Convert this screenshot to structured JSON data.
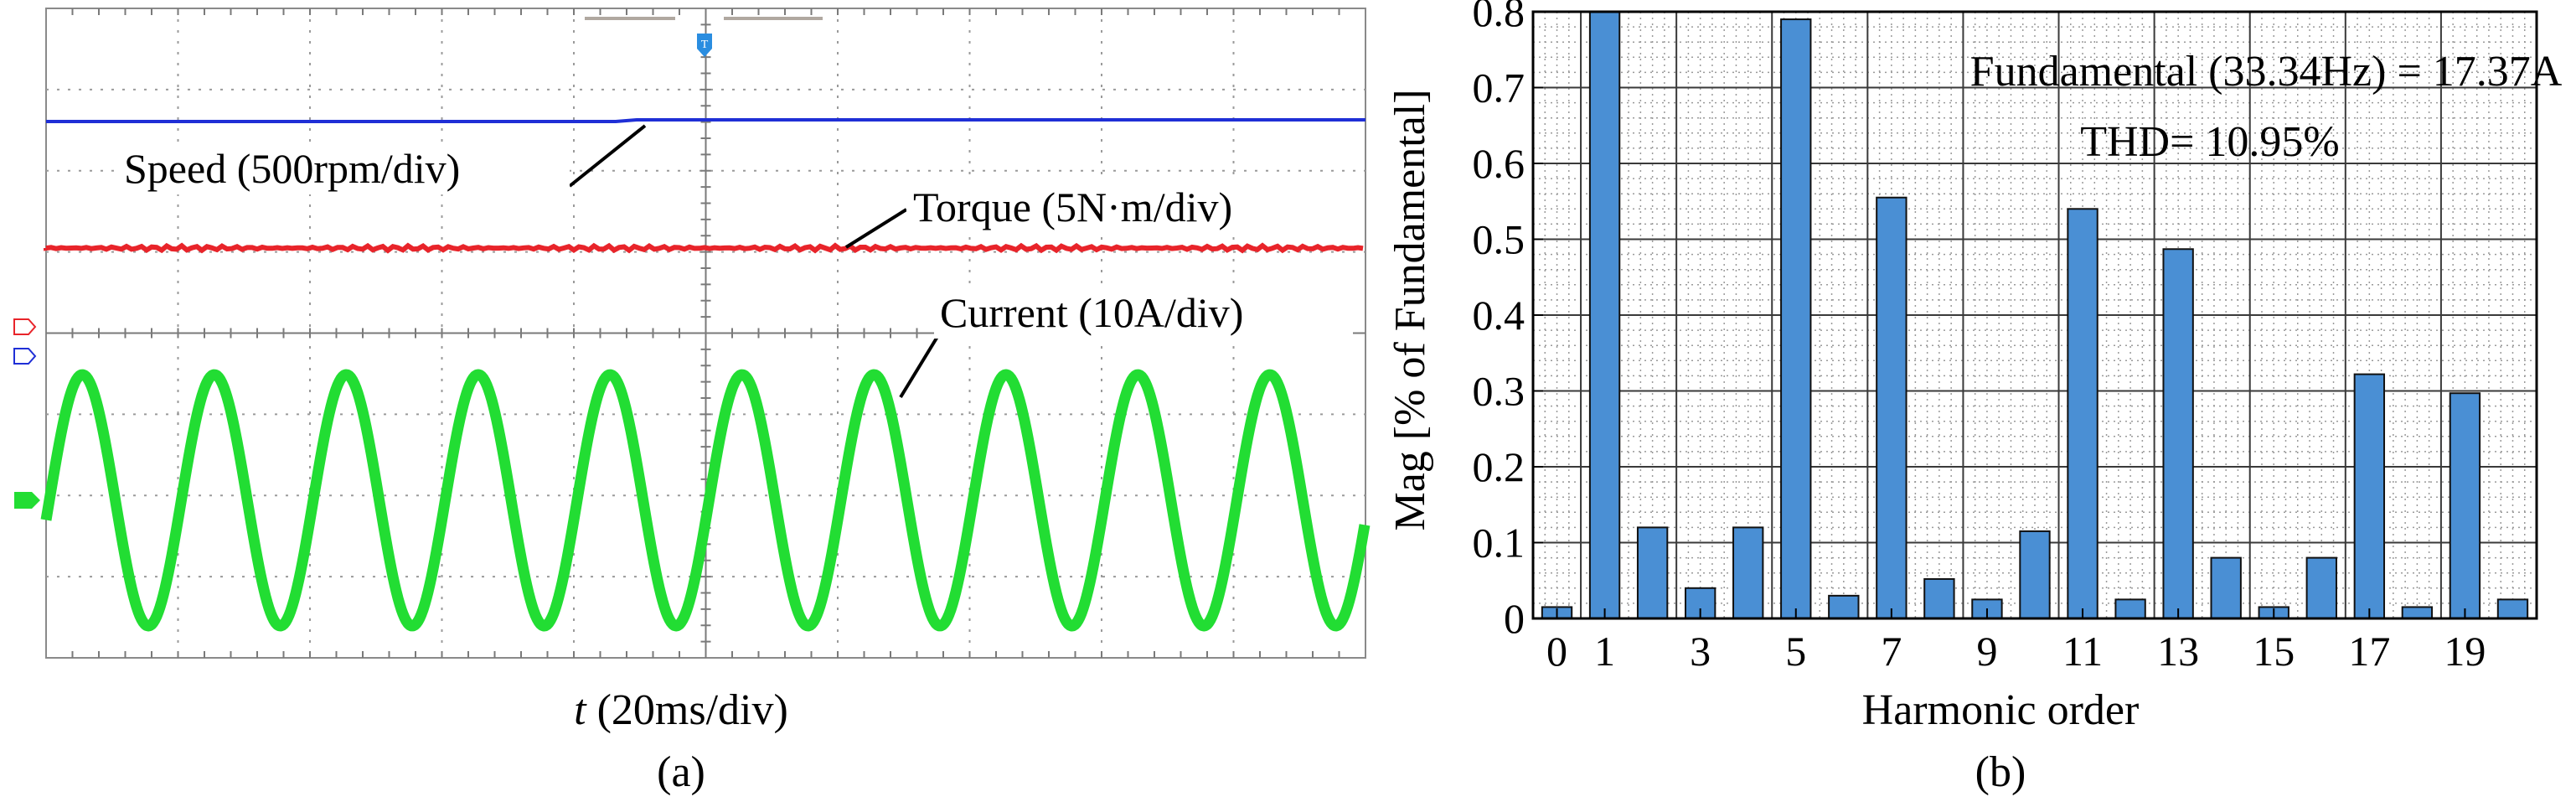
{
  "panel_a": {
    "caption": "(a)",
    "xlabel_var": "t",
    "xlabel_unit": " (20ms/div)",
    "traces": {
      "speed": {
        "label": "Speed (500rpm/div)",
        "color": "#1f2fd6"
      },
      "torque": {
        "label": "Torque (5N·m/div)",
        "color": "#e8242a"
      },
      "current": {
        "label": "Current (10A/div)",
        "color": "#22dd33",
        "cycles": 10
      }
    },
    "marker_colors": {
      "trigger": "#2a8de0",
      "ch2": "#e8242a",
      "ch1": "#1f2fd6",
      "ch3": "#22dd33"
    }
  },
  "chart_data": {
    "type": "bar",
    "title": "",
    "caption": "(b)",
    "xlabel": "Harmonic order",
    "ylabel": "Mag [% of Fundamental]",
    "ylim": [
      0,
      0.8
    ],
    "xlim": [
      -0.5,
      20.5
    ],
    "y_ticks": [
      0,
      0.1,
      0.2,
      0.3,
      0.4,
      0.5,
      0.6,
      0.7,
      0.8
    ],
    "y_tick_labels": [
      "0",
      "0.1",
      "0.2",
      "0.3",
      "0.4",
      "0.5",
      "0.6",
      "0.7",
      "0.8"
    ],
    "x_ticks": [
      0,
      1,
      3,
      5,
      7,
      9,
      11,
      13,
      15,
      17,
      19
    ],
    "x_tick_labels": [
      "0",
      "1",
      "3",
      "5",
      "7",
      "9",
      "11",
      "13",
      "15",
      "17",
      "19"
    ],
    "grid": true,
    "bar_color": "#4a8fd4",
    "annotations": [
      "Fundamental (33.34Hz) = 17.37A",
      "THD= 10.95%"
    ],
    "categories": [
      0,
      1,
      2,
      3,
      4,
      5,
      6,
      7,
      8,
      9,
      10,
      11,
      12,
      13,
      14,
      15,
      16,
      17,
      18,
      19,
      20
    ],
    "values": [
      0.015,
      0.8,
      0.12,
      0.04,
      0.12,
      0.79,
      0.03,
      0.555,
      0.052,
      0.025,
      0.115,
      0.54,
      0.025,
      0.487,
      0.08,
      0.015,
      0.08,
      0.322,
      0.015,
      0.297,
      0.025
    ]
  }
}
